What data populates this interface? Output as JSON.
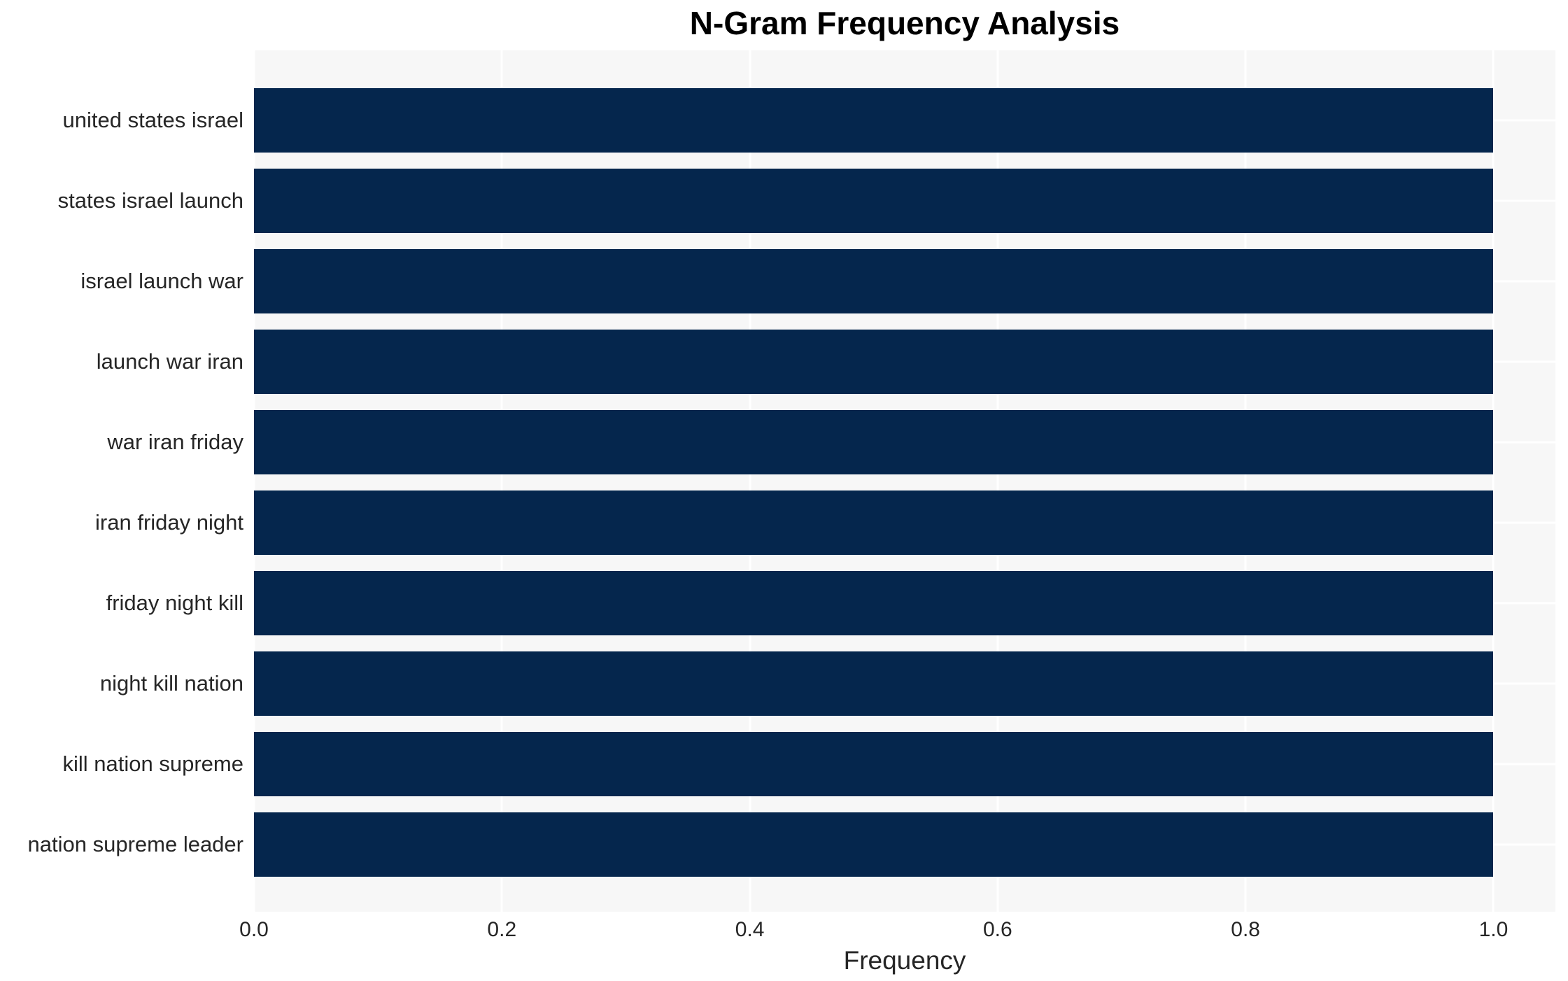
{
  "chart_data": {
    "type": "bar",
    "orientation": "horizontal",
    "title": "N-Gram Frequency Analysis",
    "xlabel": "Frequency",
    "ylabel": "",
    "categories": [
      "united states israel",
      "states israel launch",
      "israel launch war",
      "launch war iran",
      "war iran friday",
      "iran friday night",
      "friday night kill",
      "night kill nation",
      "kill nation supreme",
      "nation supreme leader"
    ],
    "values": [
      1.0,
      1.0,
      1.0,
      1.0,
      1.0,
      1.0,
      1.0,
      1.0,
      1.0,
      1.0
    ],
    "xlim": [
      0,
      1.05
    ],
    "x_ticks": [
      0.0,
      0.2,
      0.4,
      0.6,
      0.8,
      1.0
    ],
    "x_tick_labels": [
      "0.0",
      "0.2",
      "0.4",
      "0.6",
      "0.8",
      "1.0"
    ],
    "grid": true,
    "legend_position": "none",
    "colors": {
      "bar": "#05264d",
      "plot_background": "#f7f7f7",
      "grid_line": "#ffffff",
      "title_text": "#000000",
      "label_text": "#262626",
      "page_background": "#ffffff"
    }
  }
}
